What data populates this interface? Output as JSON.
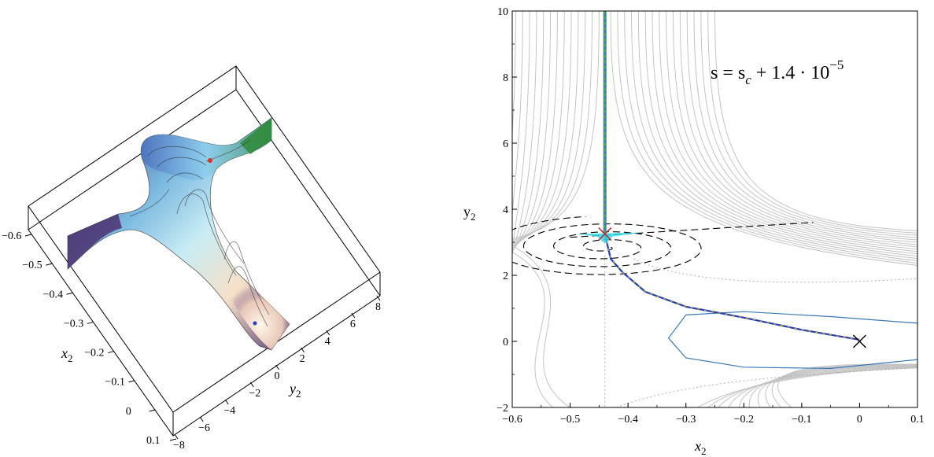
{
  "chart_data": [
    {
      "type": "surface3d",
      "axes": {
        "x2_label": "x",
        "x2_sub": "2",
        "y2_label": "y",
        "y2_sub": "2",
        "x2_ticks": [
          "-0.6",
          "-0.5",
          "-0.4",
          "-0.3",
          "-0.2",
          "-0.1",
          "0",
          "0.1"
        ],
        "y2_ticks": [
          "-8",
          "-6",
          "-4",
          "-2",
          "0",
          "2",
          "4",
          "6",
          "8"
        ]
      },
      "markers": [
        {
          "name": "saddle-point",
          "color": "#e0302a"
        },
        {
          "name": "minimum-point",
          "color": "#1f3fd0"
        }
      ],
      "colors": {
        "surface_left": "#3f2f6e",
        "surface_mid": "#9fd4f0",
        "surface_peak": "#f2dcc4",
        "edge_green": "#2f8a3a"
      }
    },
    {
      "type": "contour",
      "xlim": [
        -0.6,
        0.1
      ],
      "ylim": [
        -2,
        10
      ],
      "xlabel": "x",
      "xlabel_sub": "2",
      "ylabel": "y",
      "ylabel_sub": "2",
      "x_ticks": [
        -0.6,
        -0.5,
        -0.4,
        -0.3,
        -0.2,
        -0.1,
        0,
        0.1
      ],
      "x_tick_labels": [
        "-0.6",
        "-0.5",
        "-0.4",
        "-0.3",
        "-0.2",
        "-0.1",
        "0",
        "0.1"
      ],
      "y_ticks": [
        -2,
        0,
        2,
        4,
        6,
        8,
        10
      ],
      "y_tick_labels": [
        "-2",
        "0",
        "2",
        "4",
        "6",
        "8",
        "10"
      ],
      "annotation": {
        "lhs": "s = s",
        "sub": "c",
        "rhs": " + 1.4 · 10",
        "sup": "−5"
      },
      "saddle_x": -0.44,
      "saddle_y": 3.25,
      "minimum_x": 0,
      "minimum_y": 0,
      "trajectory": [
        [
          0,
          0.05
        ],
        [
          -0.1,
          0.35
        ],
        [
          -0.2,
          0.72
        ],
        [
          -0.3,
          1.05
        ],
        [
          -0.37,
          1.5
        ],
        [
          -0.41,
          2.1
        ],
        [
          -0.43,
          2.5
        ],
        [
          -0.44,
          3.25
        ]
      ],
      "vertical_path": [
        [
          -0.44,
          3.25
        ],
        [
          -0.44,
          10
        ]
      ],
      "closed_contour": [
        [
          0.1,
          0.55
        ],
        [
          -0.05,
          0.75
        ],
        [
          -0.2,
          0.9
        ],
        [
          -0.3,
          0.8
        ],
        [
          -0.33,
          0.1
        ],
        [
          -0.3,
          -0.5
        ],
        [
          -0.2,
          -0.78
        ],
        [
          -0.05,
          -0.82
        ],
        [
          0.1,
          -0.55
        ]
      ],
      "colors": {
        "contours": "#c4c4c4",
        "trajectory": "#1a3fb0",
        "trajectory_dash": "#e8a030",
        "closed_contour": "#3a78b8",
        "vertical_blue": "#4a7ab0",
        "vertical_green": "#3acc3a",
        "saddle_marker": "#c0303a",
        "saddle_fill": "#30d8e8",
        "minimum_marker": "#000000"
      }
    }
  ]
}
